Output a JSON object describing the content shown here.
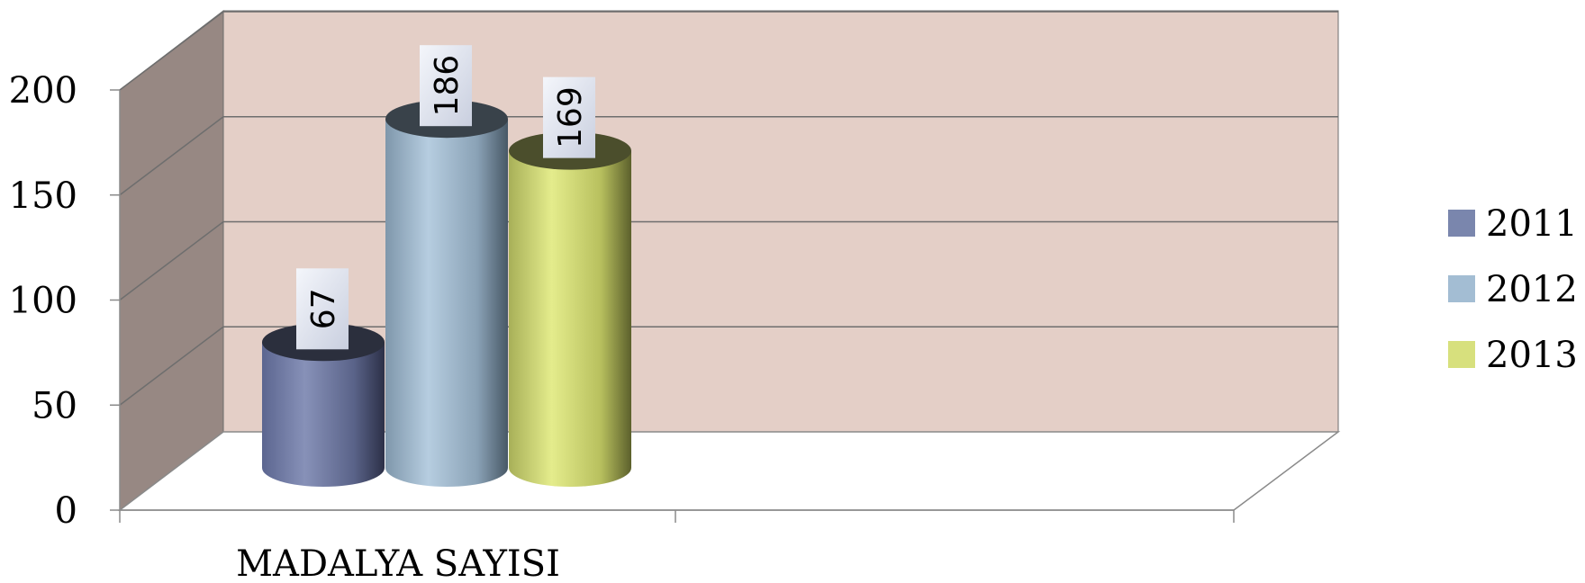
{
  "chart_data": {
    "type": "bar",
    "style": "3d-cylinder",
    "categories": [
      "MADALYA SAYISI"
    ],
    "series": [
      {
        "name": "2011",
        "values": [
          67
        ],
        "color": "#7a86ad"
      },
      {
        "name": "2012",
        "values": [
          186
        ],
        "color": "#a3bdd3"
      },
      {
        "name": "2013",
        "values": [
          169
        ],
        "color": "#d7e07d"
      }
    ],
    "y_ticks": [
      "0",
      "50",
      "100",
      "150",
      "200"
    ],
    "ylim": [
      0,
      200
    ],
    "grid": true,
    "legend_position": "right",
    "data_labels": true,
    "colors": {
      "back_wall": "#e4cfc7",
      "side_wall": "#978883",
      "gridline": "#6e6e6e"
    }
  }
}
